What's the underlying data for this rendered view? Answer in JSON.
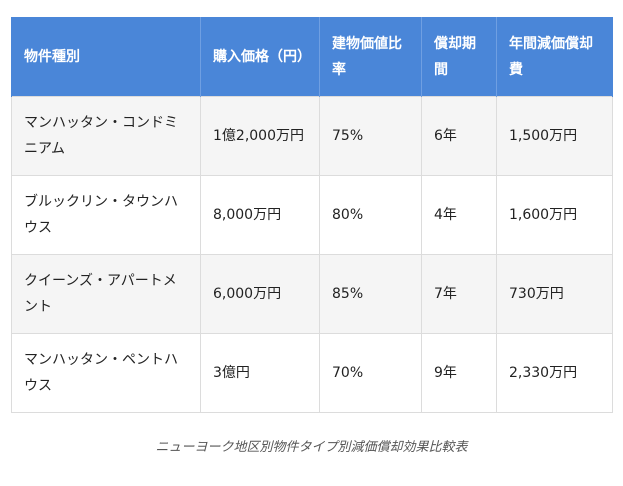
{
  "table": {
    "headers": [
      "物件種別",
      "購入価格（円）",
      "建物価値比率",
      "償却期間",
      "年間減価償却費"
    ],
    "rows": [
      [
        "マンハッタン・コンドミニアム",
        "1億2,000万円",
        "75%",
        "6年",
        "1,500万円"
      ],
      [
        "ブルックリン・タウンハウス",
        "8,000万円",
        "80%",
        "4年",
        "1,600万円"
      ],
      [
        "クイーンズ・アパートメント",
        "6,000万円",
        "85%",
        "7年",
        "730万円"
      ],
      [
        "マンハッタン・ペントハウス",
        "3億円",
        "70%",
        "9年",
        "2,330万円"
      ]
    ]
  },
  "caption": "ニューヨーク地区別物件タイプ別減価償却効果比較表",
  "colors": {
    "header_bg": "#4a86d8",
    "header_text": "#ffffff",
    "row_stripe": "#f5f5f5",
    "border": "#dcdcdc"
  }
}
